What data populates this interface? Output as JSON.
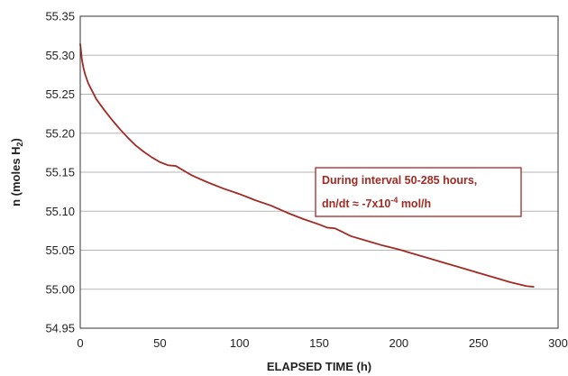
{
  "chart_data": {
    "type": "line",
    "title": "",
    "xlabel": "ELAPSED TIME (h)",
    "ylabel_parts": [
      "n (moles H",
      "2",
      ")"
    ],
    "xlim": [
      0,
      300
    ],
    "ylim": [
      54.95,
      55.35
    ],
    "x_ticks": [
      0,
      50,
      100,
      150,
      200,
      250,
      300
    ],
    "y_ticks": [
      54.95,
      55.0,
      55.05,
      55.1,
      55.15,
      55.2,
      55.25,
      55.3,
      55.35
    ],
    "y_tick_labels": [
      "54.95",
      "55.00",
      "55.05",
      "55.10",
      "55.15",
      "55.20",
      "55.25",
      "55.30",
      "55.35"
    ],
    "grid": "horizontal",
    "line_color": "#a12a23",
    "series": [
      {
        "x": [
          0,
          1,
          2,
          3,
          5,
          7,
          10,
          15,
          20,
          25,
          30,
          35,
          40,
          45,
          50,
          55,
          60,
          65,
          70,
          80,
          90,
          100,
          110,
          120,
          130,
          140,
          150,
          155,
          160,
          165,
          170,
          180,
          190,
          200,
          210,
          220,
          230,
          240,
          250,
          260,
          270,
          280,
          285
        ],
        "y": [
          55.315,
          55.295,
          55.284,
          55.276,
          55.264,
          55.256,
          55.244,
          55.23,
          55.217,
          55.205,
          55.194,
          55.184,
          55.176,
          55.169,
          55.163,
          55.159,
          55.158,
          55.152,
          55.146,
          55.137,
          55.129,
          55.122,
          55.114,
          55.107,
          55.098,
          55.09,
          55.083,
          55.079,
          55.078,
          55.073,
          55.068,
          55.062,
          55.056,
          55.051,
          55.045,
          55.039,
          55.033,
          55.027,
          55.021,
          55.015,
          55.009,
          55.004,
          55.003
        ]
      }
    ],
    "annotation": {
      "lines": [
        "During interval 50-285 hours,"
      ],
      "rate_prefix": "dn/dt ≈ -7x10",
      "rate_exp": "-4",
      "rate_suffix": " mol/h",
      "border_color": "#a12a23"
    }
  }
}
